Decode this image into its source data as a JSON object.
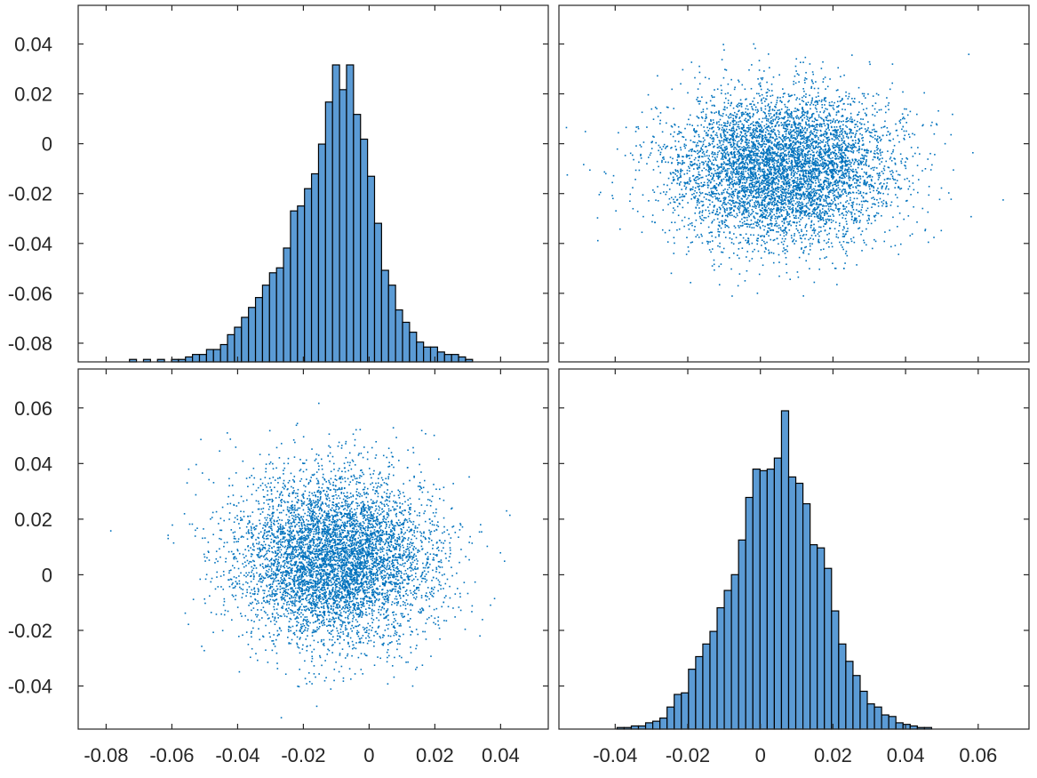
{
  "chart_data": [
    {
      "panel": "top-left",
      "type": "bar",
      "description_of_marks": "histogram of variable 1",
      "xlim": [
        -0.0885,
        0.0545
      ],
      "bin_start": -0.0729,
      "bin_width": 0.00213,
      "counts": [
        1,
        0,
        1,
        0,
        1,
        0,
        1,
        1,
        2,
        3,
        3,
        5,
        5,
        7,
        11,
        14,
        18,
        22,
        26,
        31,
        36,
        38,
        46,
        61,
        63,
        70,
        76,
        88,
        105,
        120,
        110,
        120,
        100,
        90,
        75,
        56,
        37,
        31,
        21,
        16,
        12,
        8,
        6,
        6,
        4,
        3,
        3,
        2,
        1
      ],
      "count_max": 120,
      "yticks_shown": [
        "0.04",
        "0.02",
        "0",
        "-0.02",
        "-0.04",
        "-0.06",
        "-0.08"
      ],
      "ytick_values": [
        0.04,
        0.02,
        0,
        -0.02,
        -0.04,
        -0.06,
        -0.08
      ],
      "ylim": [
        -0.0875,
        0.0555
      ]
    },
    {
      "panel": "top-right",
      "type": "scatter",
      "description_of_marks": "variable 2 (x) vs variable 1 (y)",
      "xlim": [
        -0.0555,
        0.074
      ],
      "ylim": [
        -0.0875,
        0.0555
      ],
      "x_center": 0.006,
      "y_center": -0.01,
      "x_sd": 0.015,
      "y_sd": 0.015,
      "n_points": 6000,
      "xticks_values": [
        -0.04,
        -0.02,
        0,
        0.02,
        0.04,
        0.06
      ],
      "yticks_values": [
        0.04,
        0.02,
        0,
        -0.02,
        -0.04,
        -0.06,
        -0.08
      ]
    },
    {
      "panel": "bottom-left",
      "type": "scatter",
      "description_of_marks": "variable 1 (x) vs variable 2 (y)",
      "xlim": [
        -0.0885,
        0.0545
      ],
      "ylim": [
        -0.0555,
        0.074
      ],
      "x_center": -0.01,
      "y_center": 0.006,
      "x_sd": 0.015,
      "y_sd": 0.015,
      "n_points": 6000,
      "yticks_shown": [
        "0.06",
        "0.04",
        "0.02",
        "0",
        "-0.02",
        "-0.04"
      ],
      "ytick_values": [
        0.06,
        0.04,
        0.02,
        0,
        -0.02,
        -0.04
      ],
      "xticks_shown": [
        "-0.08",
        "-0.06",
        "-0.04",
        "-0.02",
        "0",
        "0.02",
        "0.04"
      ],
      "xtick_values": [
        -0.08,
        -0.06,
        -0.04,
        -0.02,
        0,
        0.02,
        0.04
      ]
    },
    {
      "panel": "bottom-right",
      "type": "bar",
      "description_of_marks": "histogram of variable 2",
      "xlim": [
        -0.0555,
        0.074
      ],
      "bin_start": -0.0395,
      "bin_width": 0.00197,
      "counts": [
        1,
        1,
        2,
        2,
        4,
        5,
        7,
        14,
        22,
        23,
        38,
        46,
        54,
        62,
        77,
        88,
        98,
        120,
        147,
        165,
        164,
        165,
        172,
        202,
        160,
        156,
        143,
        117,
        115,
        102,
        75,
        54,
        43,
        34,
        24,
        16,
        14,
        9,
        8,
        4,
        3,
        2,
        1,
        1
      ],
      "count_max": 202,
      "xticks_shown": [
        "-0.04",
        "-0.02",
        "0",
        "0.02",
        "0.04",
        "0.06"
      ],
      "xtick_values": [
        -0.04,
        -0.02,
        0,
        0.02,
        0.04,
        0.06
      ]
    }
  ],
  "colors": {
    "bar_fill": "#5b9bd5",
    "scatter": "#0072bd",
    "axes": "#262626"
  }
}
